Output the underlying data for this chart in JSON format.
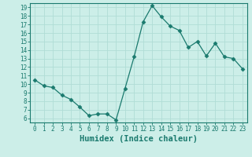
{
  "x": [
    0,
    1,
    2,
    3,
    4,
    5,
    6,
    7,
    8,
    9,
    10,
    11,
    12,
    13,
    14,
    15,
    16,
    17,
    18,
    19,
    20,
    21,
    22,
    23
  ],
  "y": [
    10.5,
    9.8,
    9.6,
    8.7,
    8.2,
    7.3,
    6.3,
    6.5,
    6.5,
    5.8,
    9.5,
    13.2,
    17.3,
    19.2,
    17.9,
    16.8,
    16.3,
    14.3,
    15.0,
    13.3,
    14.8,
    13.2,
    13.0,
    11.8
  ],
  "line_color": "#1a7a6e",
  "marker": "D",
  "marker_size": 2.5,
  "bg_color": "#cceee8",
  "grid_color": "#b0ddd6",
  "xlabel": "Humidex (Indice chaleur)",
  "xlim": [
    -0.5,
    23.5
  ],
  "ylim": [
    5.5,
    19.5
  ],
  "yticks": [
    6,
    7,
    8,
    9,
    10,
    11,
    12,
    13,
    14,
    15,
    16,
    17,
    18,
    19
  ],
  "xticks": [
    0,
    1,
    2,
    3,
    4,
    5,
    6,
    7,
    8,
    9,
    10,
    11,
    12,
    13,
    14,
    15,
    16,
    17,
    18,
    19,
    20,
    21,
    22,
    23
  ],
  "xlabel_fontsize": 7.5,
  "tick_fontsize": 5.5,
  "axis_color": "#1a7a6e",
  "spine_color": "#1a7a6e"
}
